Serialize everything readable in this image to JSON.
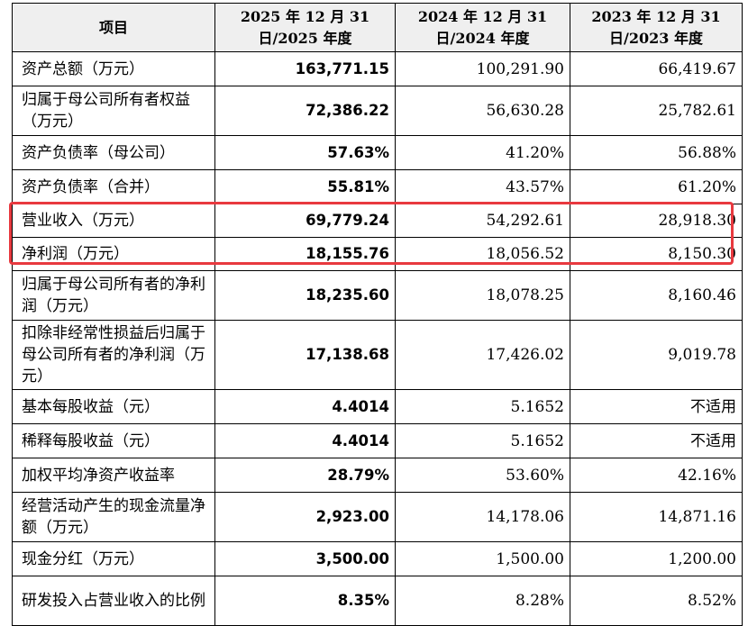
{
  "table": {
    "headers": [
      "项目",
      "2025 年 12 月 31 日/2025 年度",
      "2024 年 12 月 31 日/2024 年度",
      "2023 年 12 月 31 日/2023 年度"
    ],
    "rows": [
      {
        "item": "资产总额（万元）",
        "y2025": "163,771.15",
        "y2024": "100,291.90",
        "y2023": "66,419.67"
      },
      {
        "item": "归属于母公司所有者权益（万元）",
        "y2025": "72,386.22",
        "y2024": "56,630.28",
        "y2023": "25,782.61"
      },
      {
        "item": "资产负债率（母公司）",
        "y2025": "57.63%",
        "y2024": "41.20%",
        "y2023": "56.88%"
      },
      {
        "item": "资产负债率（合并）",
        "y2025": "55.81%",
        "y2024": "43.57%",
        "y2023": "61.20%"
      },
      {
        "item": "营业收入（万元）",
        "y2025": "69,779.24",
        "y2024": "54,292.61",
        "y2023": "28,918.30"
      },
      {
        "item": "净利润（万元）",
        "y2025": "18,155.76",
        "y2024": "18,056.52",
        "y2023": "8,150.30"
      },
      {
        "item": "归属于母公司所有者的净利润（万元）",
        "y2025": "18,235.60",
        "y2024": "18,078.25",
        "y2023": "8,160.46"
      },
      {
        "item": "扣除非经常性损益后归属于母公司所有者的净利润（万元）",
        "y2025": "17,138.68",
        "y2024": "17,426.02",
        "y2023": "9,019.78"
      },
      {
        "item": "基本每股收益（元）",
        "y2025": "4.4014",
        "y2024": "5.1652",
        "y2023": "不适用"
      },
      {
        "item": "稀释每股收益（元）",
        "y2025": "4.4014",
        "y2024": "5.1652",
        "y2023": "不适用"
      },
      {
        "item": "加权平均净资产收益率",
        "y2025": "28.79%",
        "y2024": "53.60%",
        "y2023": "42.16%"
      },
      {
        "item": "经营活动产生的现金流量净额（万元）",
        "y2025": "2,923.00",
        "y2024": "14,178.06",
        "y2023": "14,871.16"
      },
      {
        "item": "现金分红（万元）",
        "y2025": "3,500.00",
        "y2024": "1,500.00",
        "y2023": "1,200.00"
      },
      {
        "item": "研发投入占营业收入的比例",
        "y2025": "8.35%",
        "y2024": "8.28%",
        "y2023": "8.52%"
      }
    ]
  },
  "highlight_color": "#e8393f"
}
